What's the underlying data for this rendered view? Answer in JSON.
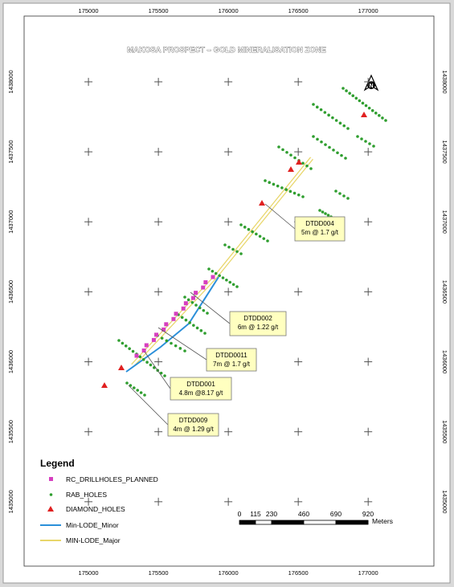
{
  "map": {
    "title": "MAKOSA PROSPECT – GOLD MINERALISATION ZONE",
    "xlim": [
      174540,
      177470
    ],
    "ylim": [
      1434540,
      1438470
    ],
    "xticks": [
      175000,
      175500,
      176000,
      176500,
      177000
    ],
    "yticks": [
      1435000,
      1435500,
      1436000,
      1436500,
      1437000,
      1437500,
      1438000
    ],
    "callouts": [
      {
        "hole": "DTDD004",
        "result": "5m @ 1.7 g/t"
      },
      {
        "hole": "DTDD002",
        "result": "6m @ 1.22 g/t"
      },
      {
        "hole": "DTDD0011",
        "result": "7m @ 1.7 g/t"
      },
      {
        "hole": "DTDD001",
        "result": "4.8m @8.17 g/t"
      },
      {
        "hole": "DTDD009",
        "result": "4m @ 1.29 g/t"
      }
    ],
    "legend": {
      "title": "Legend",
      "items": [
        "RC_DRILLHOLES_PLANNED",
        "RAB_HOLES",
        "DIAMOND_HOLES",
        "Min-LODE_Minor",
        "MIN-LODE_Major"
      ]
    },
    "scalebar": {
      "ticks": [
        0,
        115,
        230,
        460,
        690,
        920
      ],
      "unit": "Meters"
    }
  }
}
